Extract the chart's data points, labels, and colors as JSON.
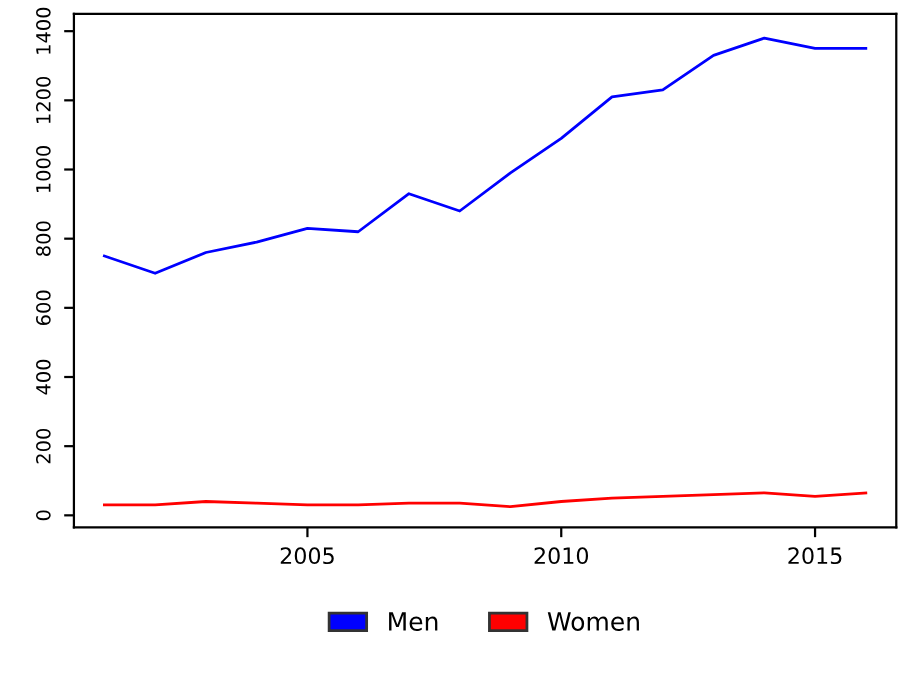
{
  "chart_data": {
    "type": "line",
    "x": [
      2001,
      2002,
      2003,
      2004,
      2005,
      2006,
      2007,
      2008,
      2009,
      2010,
      2011,
      2012,
      2013,
      2014,
      2015,
      2016
    ],
    "series": [
      {
        "name": "Men",
        "color": "#0000ff",
        "values": [
          750,
          700,
          760,
          790,
          830,
          820,
          930,
          880,
          990,
          1090,
          1210,
          1230,
          1330,
          1380,
          1350,
          1350
        ]
      },
      {
        "name": "Women",
        "color": "#ff0000",
        "values": [
          30,
          30,
          40,
          35,
          30,
          30,
          35,
          35,
          25,
          40,
          50,
          55,
          60,
          65,
          55,
          65
        ]
      }
    ],
    "xlim": [
      2000.4,
      2016.6
    ],
    "xticks": [
      2005,
      2010,
      2015
    ],
    "ylim": [
      -35,
      1450
    ],
    "yticks": [
      0,
      200,
      400,
      600,
      800,
      1000,
      1200,
      1400
    ],
    "grid": false,
    "legend": "bottom",
    "marker": "none",
    "line_style": "solid"
  }
}
